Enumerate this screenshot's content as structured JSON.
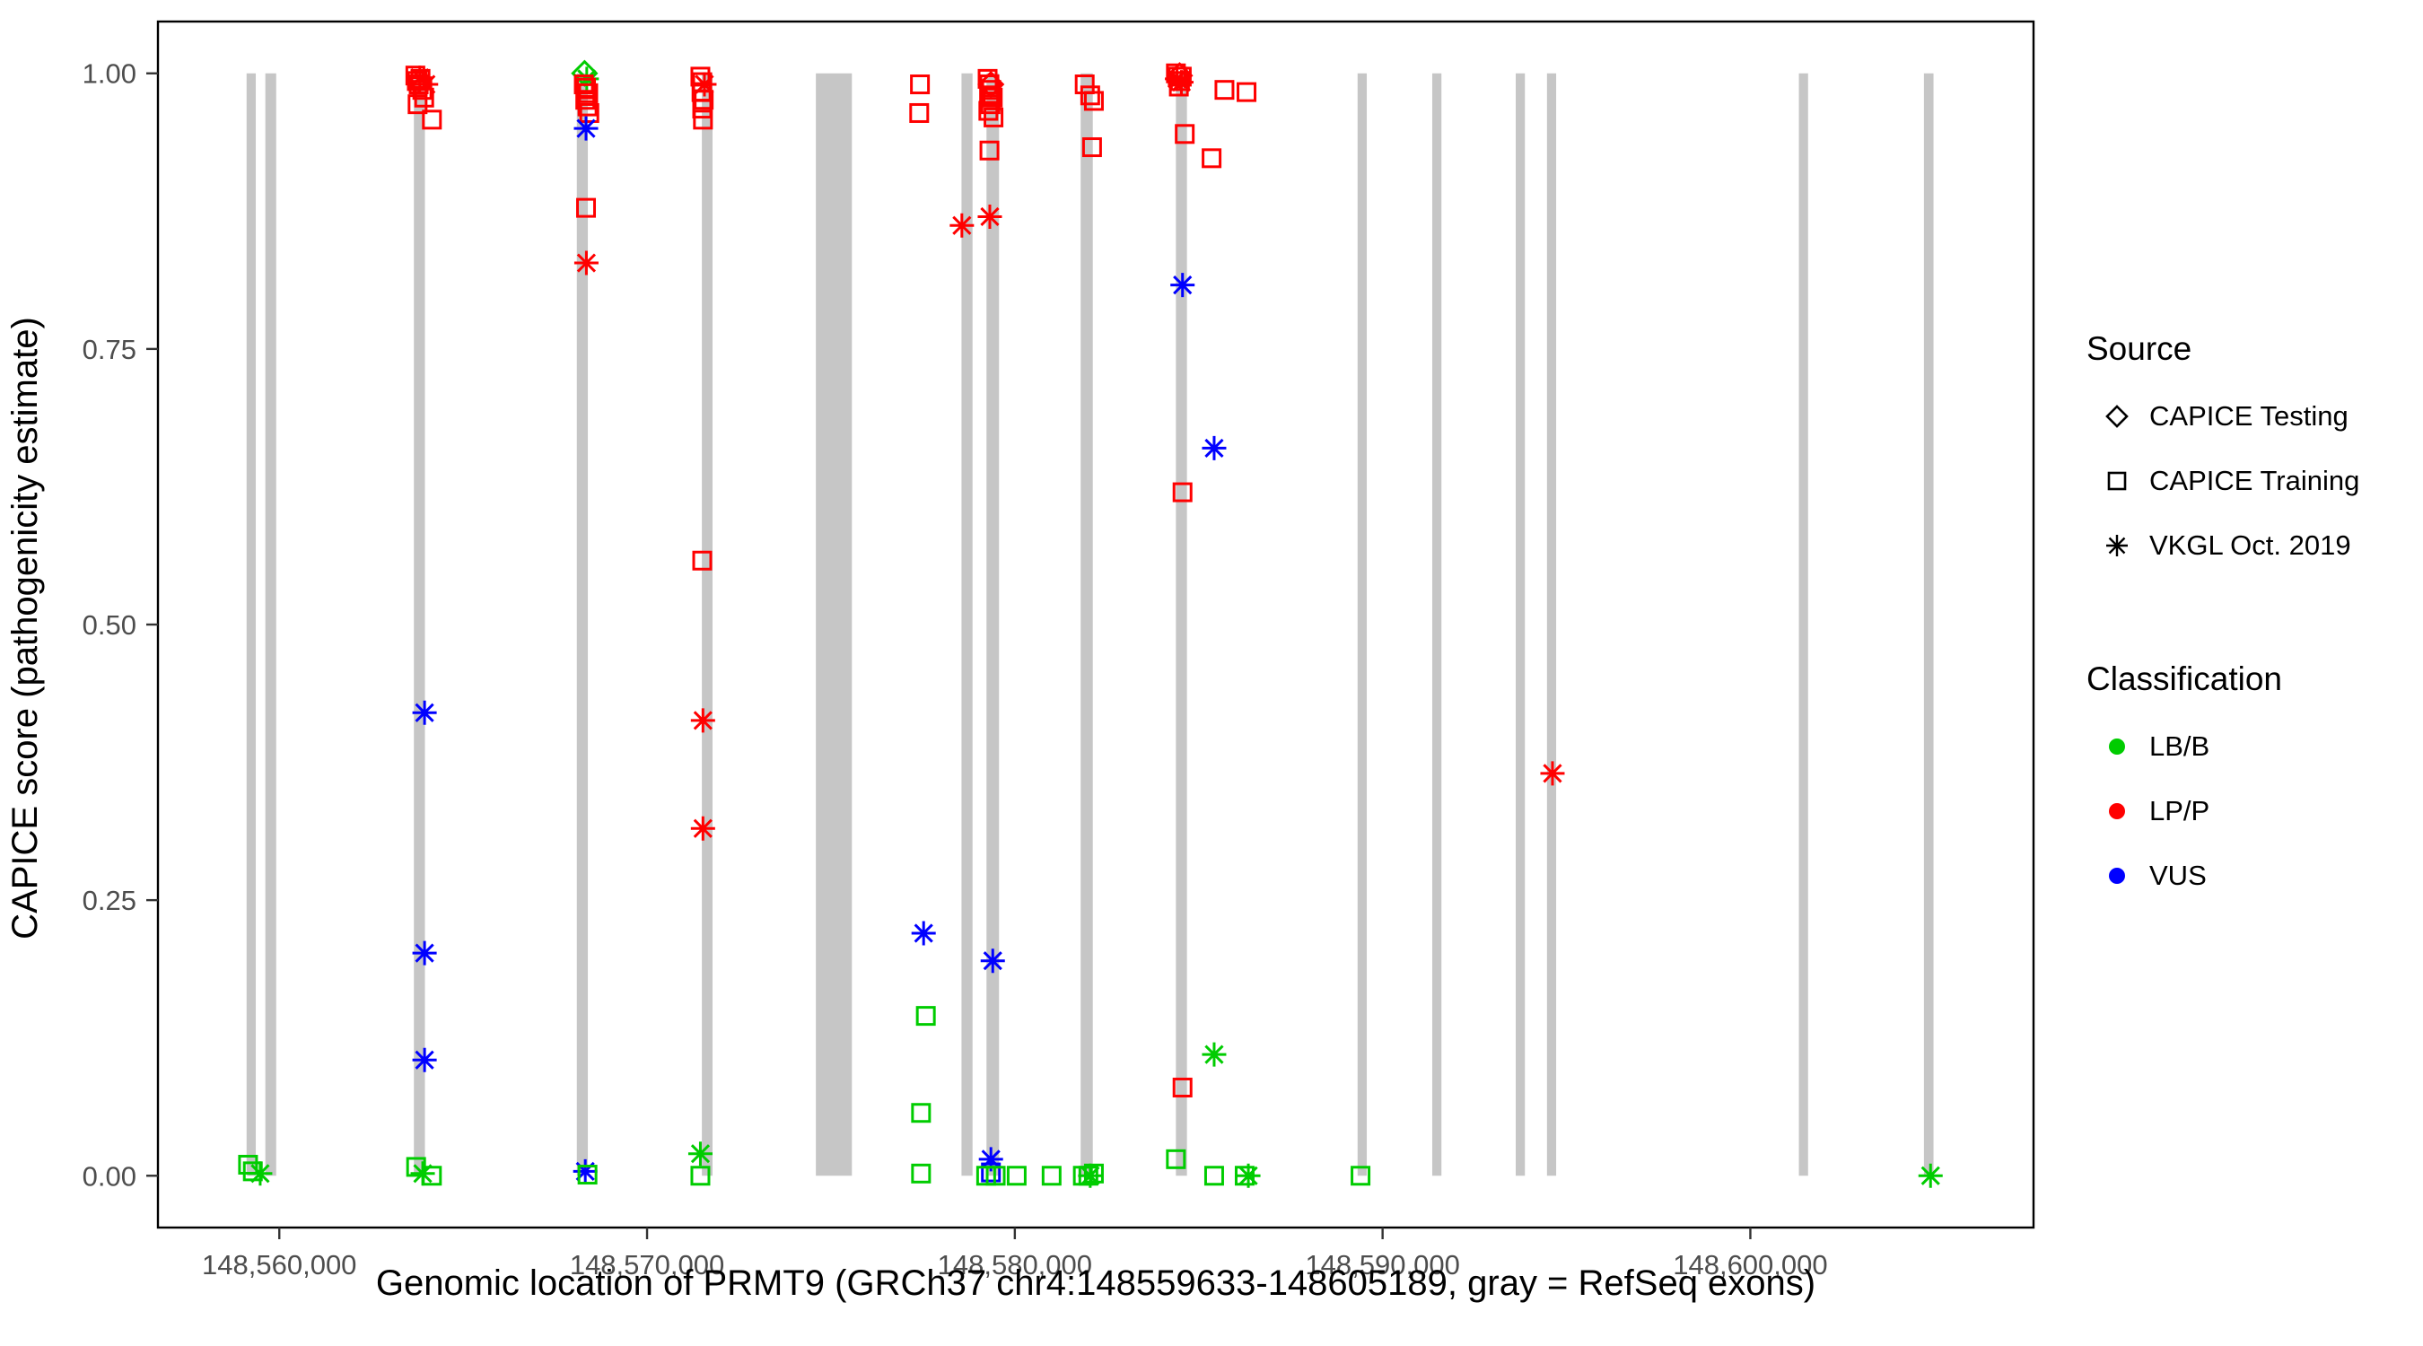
{
  "legend": {
    "source": {
      "title": "Source",
      "items": [
        {
          "label": "CAPICE Testing",
          "shape": "diamond"
        },
        {
          "label": "CAPICE Training",
          "shape": "square"
        },
        {
          "label": "VKGL Oct. 2019",
          "shape": "asterisk"
        }
      ]
    },
    "classification": {
      "title": "Classification",
      "items": [
        {
          "label": "LB/B",
          "color": "#00CC00"
        },
        {
          "label": "LP/P",
          "color": "#FF0000"
        },
        {
          "label": "VUS",
          "color": "#0000FF"
        }
      ]
    }
  },
  "chart_data": {
    "type": "scatter",
    "title": "",
    "xlabel": "Genomic location of PRMT9 (GRCh37 chr4:148559633-148605189, gray = RefSeq exons)",
    "ylabel": "CAPICE score (pathogenicity estimate)",
    "xlim": [
      148556700,
      148607700
    ],
    "ylim": [
      -0.047,
      1.047
    ],
    "grid": false,
    "legend_position": "right",
    "x_ticks": [
      {
        "value": 148560000,
        "label": "148,560,000"
      },
      {
        "value": 148570000,
        "label": "148,570,000"
      },
      {
        "value": 148580000,
        "label": "148,580,000"
      },
      {
        "value": 148590000,
        "label": "148,590,000"
      },
      {
        "value": 148600000,
        "label": "148,600,000"
      }
    ],
    "y_ticks": [
      {
        "value": 0.0,
        "label": "0.00"
      },
      {
        "value": 0.25,
        "label": "0.25"
      },
      {
        "value": 0.5,
        "label": "0.50"
      },
      {
        "value": 0.75,
        "label": "0.75"
      },
      {
        "value": 1.0,
        "label": "1.00"
      }
    ],
    "exon_color": "#C6C6C6",
    "exons": [
      [
        148559110,
        148559360
      ],
      [
        148559620,
        148559915
      ],
      [
        148563660,
        148563960
      ],
      [
        148568090,
        148568390
      ],
      [
        148571490,
        148571780
      ],
      [
        148574590,
        148575570
      ],
      [
        148578550,
        148578850
      ],
      [
        148579230,
        148579570
      ],
      [
        148581790,
        148582120
      ],
      [
        148584380,
        148584680
      ],
      [
        148589320,
        148589570
      ],
      [
        148591350,
        148591600
      ],
      [
        148593620,
        148593870
      ],
      [
        148594470,
        148594720
      ],
      [
        148601320,
        148601570
      ],
      [
        148604720,
        148604980
      ]
    ],
    "source_shape_map": {
      "CAPICE Testing": "diamond",
      "CAPICE Training": "square",
      "VKGL Oct. 2019": "asterisk"
    },
    "color_map": {
      "LB/B": "#00CC00",
      "LP/P": "#FF0000",
      "VUS": "#0000FF"
    },
    "points_format": [
      "genomic_position",
      "capice_score",
      "source",
      "classification"
    ],
    "points": [
      [
        148559150,
        0.01,
        "CAPICE Training",
        "LB/B"
      ],
      [
        148559280,
        0.004,
        "CAPICE Training",
        "LB/B"
      ],
      [
        148559480,
        0.002,
        "VKGL Oct. 2019",
        "LB/B"
      ],
      [
        148563700,
        0.998,
        "CAPICE Training",
        "LP/P"
      ],
      [
        148563740,
        0.993,
        "CAPICE Training",
        "LP/P"
      ],
      [
        148563790,
        0.99,
        "CAPICE Training",
        "LP/P"
      ],
      [
        148563840,
        0.995,
        "CAPICE Training",
        "LP/P"
      ],
      [
        148563890,
        0.985,
        "CAPICE Training",
        "LP/P"
      ],
      [
        148563940,
        0.978,
        "CAPICE Training",
        "LP/P"
      ],
      [
        148563760,
        0.972,
        "CAPICE Training",
        "LP/P"
      ],
      [
        148563820,
        0.996,
        "VKGL Oct. 2019",
        "LP/P"
      ],
      [
        148563990,
        0.99,
        "VKGL Oct. 2019",
        "LP/P"
      ],
      [
        148564150,
        0.958,
        "CAPICE Training",
        "LP/P"
      ],
      [
        148563950,
        0.42,
        "VKGL Oct. 2019",
        "VUS"
      ],
      [
        148563950,
        0.202,
        "VKGL Oct. 2019",
        "VUS"
      ],
      [
        148563950,
        0.105,
        "VKGL Oct. 2019",
        "VUS"
      ],
      [
        148563720,
        0.008,
        "CAPICE Training",
        "LB/B"
      ],
      [
        148563900,
        0.002,
        "VKGL Oct. 2019",
        "LB/B"
      ],
      [
        148564150,
        0.0,
        "CAPICE Training",
        "LB/B"
      ],
      [
        148568300,
        1.0,
        "CAPICE Testing",
        "LB/B"
      ],
      [
        148568360,
        0.995,
        "VKGL Oct. 2019",
        "LB/B"
      ],
      [
        148568280,
        0.99,
        "CAPICE Training",
        "LP/P"
      ],
      [
        148568340,
        0.987,
        "CAPICE Training",
        "LP/P"
      ],
      [
        148568400,
        0.982,
        "CAPICE Training",
        "LP/P"
      ],
      [
        148568320,
        0.976,
        "CAPICE Training",
        "LP/P"
      ],
      [
        148568380,
        0.97,
        "CAPICE Training",
        "LP/P"
      ],
      [
        148568430,
        0.964,
        "CAPICE Training",
        "LP/P"
      ],
      [
        148568340,
        0.95,
        "VKGL Oct. 2019",
        "VUS"
      ],
      [
        148568340,
        0.878,
        "CAPICE Training",
        "LP/P"
      ],
      [
        148568350,
        0.828,
        "VKGL Oct. 2019",
        "LP/P"
      ],
      [
        148568320,
        0.004,
        "VKGL Oct. 2019",
        "VUS"
      ],
      [
        148568380,
        0.001,
        "CAPICE Training",
        "LB/B"
      ],
      [
        148571450,
        0.997,
        "CAPICE Training",
        "LP/P"
      ],
      [
        148571500,
        0.992,
        "CAPICE Training",
        "LP/P"
      ],
      [
        148571560,
        0.99,
        "VKGL Oct. 2019",
        "LP/P"
      ],
      [
        148571480,
        0.983,
        "CAPICE Training",
        "LP/P"
      ],
      [
        148571540,
        0.976,
        "CAPICE Training",
        "LP/P"
      ],
      [
        148571500,
        0.968,
        "CAPICE Training",
        "LP/P"
      ],
      [
        148571520,
        0.958,
        "CAPICE Training",
        "LP/P"
      ],
      [
        148571500,
        0.558,
        "CAPICE Training",
        "LP/P"
      ],
      [
        148571520,
        0.413,
        "VKGL Oct. 2019",
        "LP/P"
      ],
      [
        148571520,
        0.315,
        "VKGL Oct. 2019",
        "LP/P"
      ],
      [
        148571450,
        0.02,
        "VKGL Oct. 2019",
        "LB/B"
      ],
      [
        148571450,
        0.0,
        "CAPICE Training",
        "LB/B"
      ],
      [
        148577420,
        0.99,
        "CAPICE Training",
        "LP/P"
      ],
      [
        148577400,
        0.964,
        "CAPICE Training",
        "LP/P"
      ],
      [
        148577520,
        0.22,
        "VKGL Oct. 2019",
        "VUS"
      ],
      [
        148577580,
        0.145,
        "CAPICE Training",
        "LB/B"
      ],
      [
        148577450,
        0.057,
        "CAPICE Training",
        "LB/B"
      ],
      [
        148577450,
        0.002,
        "CAPICE Training",
        "LB/B"
      ],
      [
        148578560,
        0.862,
        "VKGL Oct. 2019",
        "LP/P"
      ],
      [
        148579320,
        0.87,
        "VKGL Oct. 2019",
        "LP/P"
      ],
      [
        148579260,
        0.995,
        "CAPICE Training",
        "LP/P"
      ],
      [
        148579310,
        0.99,
        "CAPICE Training",
        "LP/P"
      ],
      [
        148579360,
        0.985,
        "CAPICE Training",
        "LP/P"
      ],
      [
        148579300,
        0.98,
        "CAPICE Training",
        "LP/P"
      ],
      [
        148579400,
        0.978,
        "CAPICE Training",
        "LP/P"
      ],
      [
        148579340,
        0.972,
        "CAPICE Training",
        "LP/P"
      ],
      [
        148579280,
        0.966,
        "CAPICE Training",
        "LP/P"
      ],
      [
        148579420,
        0.96,
        "CAPICE Training",
        "LP/P"
      ],
      [
        148579350,
        0.99,
        "CAPICE Testing",
        "LP/P"
      ],
      [
        148579310,
        0.93,
        "CAPICE Training",
        "LP/P"
      ],
      [
        148579400,
        0.195,
        "VKGL Oct. 2019",
        "VUS"
      ],
      [
        148579350,
        0.015,
        "VKGL Oct. 2019",
        "VUS"
      ],
      [
        148579350,
        0.003,
        "CAPICE Training",
        "VUS"
      ],
      [
        148579220,
        0.0,
        "CAPICE Training",
        "LB/B"
      ],
      [
        148579480,
        0.0,
        "CAPICE Training",
        "LB/B"
      ],
      [
        148580050,
        0.0,
        "CAPICE Training",
        "LB/B"
      ],
      [
        148581000,
        0.0,
        "CAPICE Training",
        "LB/B"
      ],
      [
        148581900,
        0.99,
        "CAPICE Training",
        "LP/P"
      ],
      [
        148582050,
        0.98,
        "CAPICE Training",
        "LP/P"
      ],
      [
        148582150,
        0.975,
        "CAPICE Training",
        "LP/P"
      ],
      [
        148582100,
        0.933,
        "CAPICE Training",
        "LP/P"
      ],
      [
        148581850,
        0.0,
        "CAPICE Training",
        "LB/B"
      ],
      [
        148582000,
        0.0,
        "CAPICE Training",
        "LB/B"
      ],
      [
        148582050,
        0.0,
        "VKGL Oct. 2019",
        "LB/B"
      ],
      [
        148582150,
        0.002,
        "CAPICE Training",
        "LB/B"
      ],
      [
        148584380,
        1.0,
        "CAPICE Training",
        "LP/P"
      ],
      [
        148584430,
        0.997,
        "CAPICE Training",
        "LP/P"
      ],
      [
        148584490,
        0.993,
        "CAPICE Training",
        "LP/P"
      ],
      [
        148584540,
        0.997,
        "CAPICE Training",
        "LP/P"
      ],
      [
        148584460,
        0.988,
        "CAPICE Training",
        "LP/P"
      ],
      [
        148584410,
        0.995,
        "VKGL Oct. 2019",
        "LP/P"
      ],
      [
        148584530,
        0.992,
        "VKGL Oct. 2019",
        "LP/P"
      ],
      [
        148584480,
        0.998,
        "CAPICE Testing",
        "LP/P"
      ],
      [
        148584620,
        0.945,
        "CAPICE Training",
        "LP/P"
      ],
      [
        148585350,
        0.923,
        "CAPICE Training",
        "LP/P"
      ],
      [
        148584560,
        0.808,
        "VKGL Oct. 2019",
        "VUS"
      ],
      [
        148585420,
        0.66,
        "VKGL Oct. 2019",
        "VUS"
      ],
      [
        148584560,
        0.62,
        "CAPICE Training",
        "LP/P"
      ],
      [
        148584560,
        0.08,
        "CAPICE Training",
        "LP/P"
      ],
      [
        148585420,
        0.11,
        "VKGL Oct. 2019",
        "LB/B"
      ],
      [
        148584380,
        0.015,
        "CAPICE Training",
        "LB/B"
      ],
      [
        148585700,
        0.985,
        "CAPICE Training",
        "LP/P"
      ],
      [
        148586300,
        0.983,
        "CAPICE Training",
        "LP/P"
      ],
      [
        148585420,
        0.0,
        "CAPICE Training",
        "LB/B"
      ],
      [
        148586250,
        0.0,
        "CAPICE Training",
        "LB/B"
      ],
      [
        148586350,
        0.0,
        "VKGL Oct. 2019",
        "LB/B"
      ],
      [
        148589400,
        0.0,
        "CAPICE Training",
        "LB/B"
      ],
      [
        148594620,
        0.365,
        "VKGL Oct. 2019",
        "LP/P"
      ],
      [
        148604900,
        0.0,
        "VKGL Oct. 2019",
        "LB/B"
      ]
    ]
  }
}
